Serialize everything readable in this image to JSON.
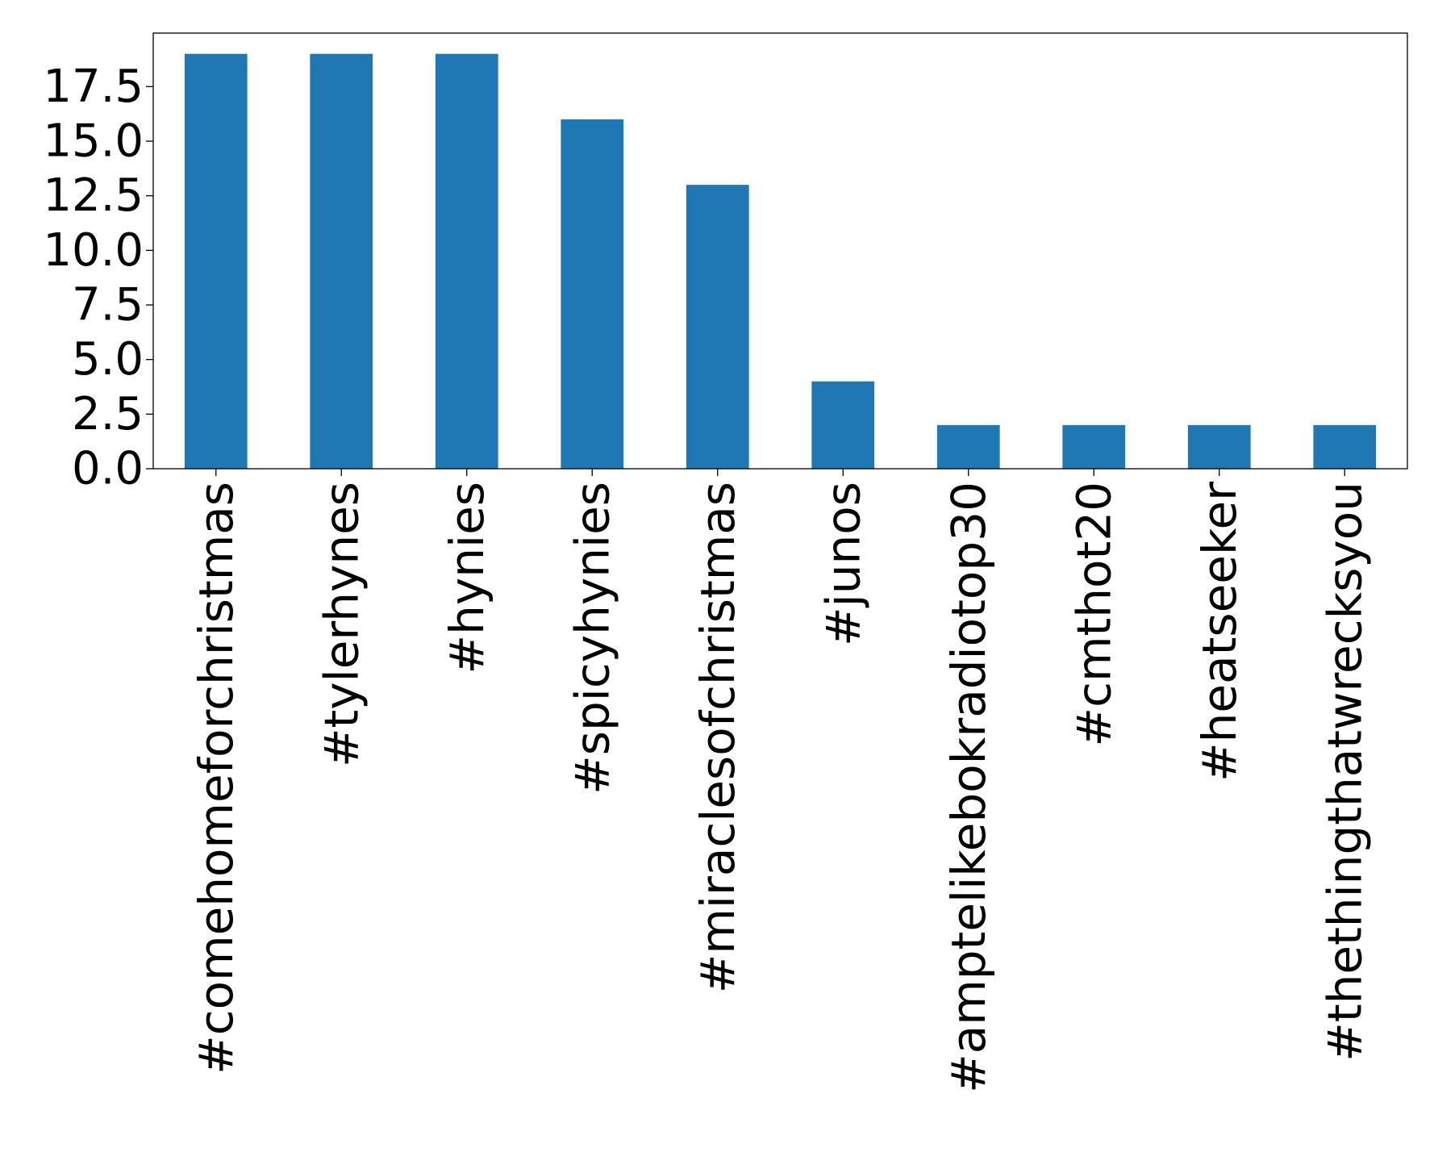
{
  "chart_data": {
    "type": "bar",
    "title": "",
    "xlabel": "",
    "ylabel": "",
    "categories": [
      "#comehomeforchristmas",
      "#tylerhynes",
      "#hynies",
      "#spicyhynies",
      "#miraclesofchristmas",
      "#junos",
      "#amptelikebokradiotop30",
      "#cmthot20",
      "#heatseeker",
      "#thethingthatwrecksyou"
    ],
    "values": [
      19,
      19,
      19,
      16,
      13,
      4,
      2,
      2,
      2,
      2
    ],
    "ylim": [
      0,
      19.95
    ],
    "yticks": [
      "0.0",
      "2.5",
      "5.0",
      "7.5",
      "10.0",
      "12.5",
      "15.0",
      "17.5"
    ],
    "bar_color": "#1f77b4",
    "grid": false,
    "legend": "none"
  }
}
